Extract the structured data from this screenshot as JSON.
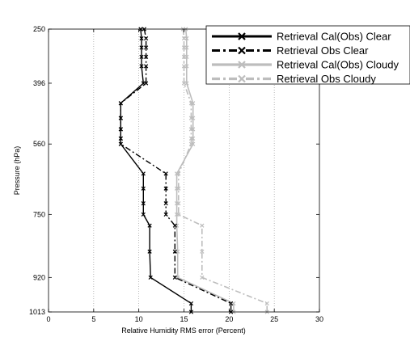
{
  "chart_data": {
    "type": "line",
    "title": "",
    "xlabel": "Relative Humidity RMS error (Percent)",
    "ylabel": "Pressure (hPa)",
    "xlim": [
      0,
      30
    ],
    "ylim": [
      250,
      1013
    ],
    "y_inverted": true,
    "xticks": [
      0,
      5,
      10,
      15,
      20,
      25,
      30
    ],
    "yticks": [
      250,
      396,
      560,
      750,
      920,
      1013
    ],
    "grid": "vertical dotted",
    "legend_position": "top-right",
    "y": [
      250,
      275,
      300,
      325,
      350,
      396,
      450,
      490,
      520,
      545,
      560,
      640,
      680,
      720,
      750,
      780,
      850,
      920,
      990,
      1013
    ],
    "series": [
      {
        "name": "Retrieval Cal(Obs) Clear",
        "color": "#000000",
        "dash": "solid",
        "x": [
          10.2,
          10.3,
          10.3,
          10.3,
          10.3,
          10.5,
          8.0,
          8.0,
          8.0,
          8.0,
          8.0,
          10.5,
          10.5,
          10.5,
          10.5,
          11.2,
          11.2,
          11.3,
          15.8,
          15.8
        ]
      },
      {
        "name": "Retrieval Obs Clear",
        "color": "#000000",
        "dash": "dashdot",
        "x": [
          10.6,
          10.8,
          10.8,
          10.8,
          10.8,
          10.8,
          8.0,
          8.0,
          8.0,
          8.0,
          8.0,
          13.0,
          13.0,
          13.0,
          13.0,
          14.0,
          14.0,
          14.0,
          20.2,
          20.2
        ]
      },
      {
        "name": "Retrieval Cal(Obs) Cloudy",
        "color": "#bdbdbd",
        "dash": "solid",
        "x": [
          15.2,
          15.3,
          15.3,
          15.3,
          15.3,
          15.3,
          16.0,
          16.0,
          16.0,
          16.0,
          16.0,
          14.2,
          14.2,
          14.2,
          14.2,
          14.2,
          14.3,
          14.3,
          20.5,
          20.5
        ]
      },
      {
        "name": "Retrieval Obs Cloudy",
        "color": "#bdbdbd",
        "dash": "dashdot",
        "x": [
          14.9,
          15.0,
          15.0,
          15.0,
          15.0,
          15.0,
          15.8,
          15.8,
          15.8,
          15.8,
          15.8,
          14.4,
          14.4,
          14.4,
          14.4,
          17.0,
          17.0,
          17.0,
          24.2,
          24.2
        ]
      }
    ]
  }
}
